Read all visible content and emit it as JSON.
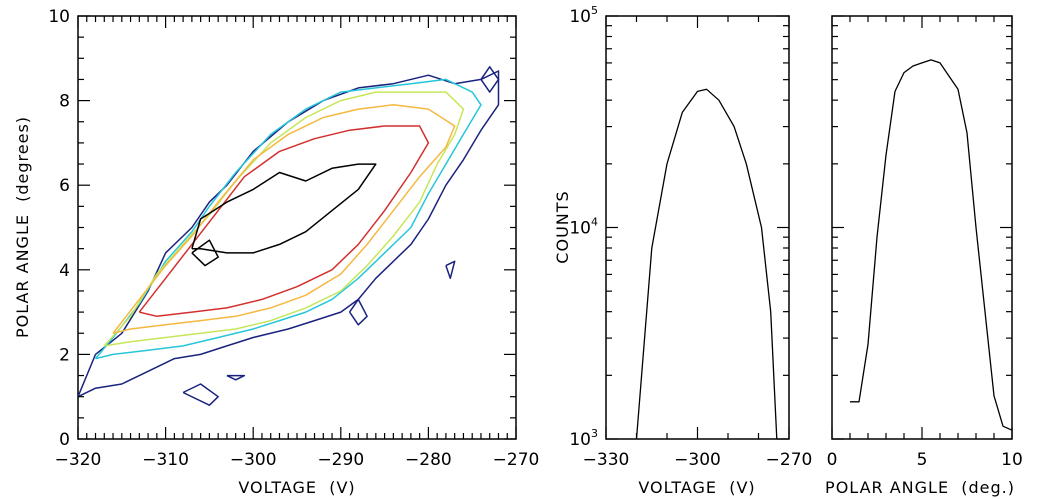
{
  "chart_data": [
    {
      "type": "contour",
      "xlabel": "VOLTAGE  (V)",
      "ylabel": "POLAR ANGLE  (degrees)",
      "xlim": [
        -320,
        -270
      ],
      "ylim": [
        0,
        10
      ],
      "xticks": [
        -320,
        -310,
        -300,
        -290,
        -280,
        -270
      ],
      "yticks": [
        0,
        2,
        4,
        6,
        8,
        10
      ],
      "contours": [
        {
          "color": "#1a237e",
          "x": [
            -320,
            -318,
            -315,
            -312,
            -310,
            -307,
            -305,
            -303,
            -300,
            -296,
            -292,
            -288,
            -284,
            -280,
            -277,
            -274,
            -272,
            -272,
            -274,
            -276,
            -278,
            -280,
            -282,
            -284,
            -286,
            -288,
            -290,
            -293,
            -296,
            -300,
            -303,
            -306,
            -309,
            -312,
            -315,
            -318,
            -320,
            -320
          ],
          "y": [
            1.0,
            2.0,
            2.5,
            3.5,
            4.4,
            5.0,
            5.6,
            6.0,
            6.8,
            7.5,
            8.0,
            8.3,
            8.4,
            8.6,
            8.4,
            8.5,
            8.7,
            7.9,
            7.3,
            6.6,
            6.0,
            5.2,
            4.6,
            4.2,
            3.8,
            3.3,
            3.0,
            2.8,
            2.6,
            2.4,
            2.2,
            2.0,
            1.9,
            1.6,
            1.3,
            1.2,
            1.0,
            1.0
          ]
        },
        {
          "color": "#26c6da",
          "x": [
            -318,
            -316,
            -313,
            -310,
            -307,
            -305,
            -302,
            -298,
            -294,
            -290,
            -286,
            -282,
            -278,
            -275,
            -274,
            -276,
            -278,
            -280,
            -282,
            -285,
            -288,
            -291,
            -294,
            -297,
            -300,
            -304,
            -308,
            -312,
            -316,
            -318
          ],
          "y": [
            1.9,
            2.4,
            3.2,
            4.2,
            4.9,
            5.5,
            6.3,
            7.2,
            7.8,
            8.2,
            8.3,
            8.4,
            8.5,
            8.2,
            7.9,
            7.2,
            6.5,
            5.8,
            5.0,
            4.4,
            3.8,
            3.3,
            3.0,
            2.8,
            2.6,
            2.4,
            2.2,
            2.1,
            2.0,
            1.9
          ]
        },
        {
          "color": "#c6e65a",
          "x": [
            -317,
            -314,
            -311,
            -308,
            -305,
            -302,
            -298,
            -294,
            -290,
            -286,
            -282,
            -278,
            -276,
            -277,
            -279,
            -281,
            -284,
            -287,
            -290,
            -294,
            -298,
            -302,
            -306,
            -310,
            -314,
            -317
          ],
          "y": [
            2.2,
            2.9,
            3.9,
            4.6,
            5.3,
            6.1,
            7.0,
            7.6,
            8.0,
            8.2,
            8.2,
            8.2,
            7.8,
            7.2,
            6.5,
            5.6,
            4.8,
            4.1,
            3.5,
            3.1,
            2.8,
            2.6,
            2.5,
            2.4,
            2.3,
            2.2
          ]
        },
        {
          "color": "#f5b840",
          "x": [
            -316,
            -313,
            -310,
            -307,
            -304,
            -300,
            -296,
            -292,
            -288,
            -284,
            -280,
            -277,
            -278,
            -281,
            -284,
            -287,
            -290,
            -294,
            -298,
            -302,
            -306,
            -310,
            -314,
            -316
          ],
          "y": [
            2.5,
            3.3,
            4.1,
            4.8,
            5.6,
            6.6,
            7.2,
            7.6,
            7.8,
            7.9,
            7.8,
            7.4,
            6.9,
            6.2,
            5.4,
            4.6,
            3.9,
            3.4,
            3.1,
            2.9,
            2.8,
            2.7,
            2.6,
            2.5
          ]
        },
        {
          "color": "#d32f2f",
          "x": [
            -313,
            -310,
            -307,
            -304,
            -301,
            -297,
            -293,
            -289,
            -285,
            -281,
            -280,
            -282,
            -285,
            -288,
            -291,
            -295,
            -299,
            -303,
            -307,
            -311,
            -313
          ],
          "y": [
            3.0,
            3.8,
            4.6,
            5.4,
            6.2,
            6.8,
            7.1,
            7.3,
            7.4,
            7.4,
            7.0,
            6.3,
            5.4,
            4.6,
            4.0,
            3.6,
            3.3,
            3.1,
            3.0,
            2.9,
            3.0
          ]
        },
        {
          "color": "#000000",
          "x": [
            -307,
            -306,
            -303,
            -300,
            -297,
            -294,
            -291,
            -288,
            -286,
            -288,
            -291,
            -294,
            -297,
            -300,
            -303,
            -306,
            -307
          ],
          "y": [
            4.5,
            5.2,
            5.6,
            5.9,
            6.3,
            6.1,
            6.4,
            6.5,
            6.5,
            5.9,
            5.4,
            4.9,
            4.6,
            4.4,
            4.4,
            4.5,
            4.5
          ]
        },
        {
          "color": "#000000",
          "x": [
            -307,
            -305,
            -304,
            -305.5,
            -307
          ],
          "y": [
            4.4,
            4.7,
            4.3,
            4.1,
            4.4
          ]
        },
        {
          "color": "#1a237e",
          "x": [
            -308,
            -306,
            -304,
            -305,
            -308
          ],
          "y": [
            1.1,
            1.3,
            1.0,
            0.8,
            1.1
          ]
        },
        {
          "color": "#1a237e",
          "x": [
            -303,
            -301,
            -302,
            -303
          ],
          "y": [
            1.5,
            1.5,
            1.4,
            1.5
          ]
        },
        {
          "color": "#1a237e",
          "x": [
            -289,
            -288,
            -287,
            -288,
            -289
          ],
          "y": [
            3.0,
            3.3,
            2.9,
            2.7,
            3.0
          ]
        },
        {
          "color": "#1a237e",
          "x": [
            -278,
            -277,
            -277.5,
            -278
          ],
          "y": [
            4.1,
            4.2,
            3.8,
            4.1
          ]
        },
        {
          "color": "#1a237e",
          "x": [
            -274,
            -273,
            -272,
            -273,
            -274
          ],
          "y": [
            8.5,
            8.8,
            8.5,
            8.2,
            8.5
          ]
        }
      ]
    },
    {
      "type": "line",
      "xlabel": "VOLTAGE  (V)",
      "ylabel": "COUNTS",
      "ylog": true,
      "xlim": [
        -330,
        -270
      ],
      "ylim": [
        1000,
        100000
      ],
      "xticks": [
        -330,
        -300,
        -270
      ],
      "yticks": [
        {
          "value": 1000,
          "base": "10",
          "exp": "3"
        },
        {
          "value": 10000,
          "base": "10",
          "exp": "4"
        },
        {
          "value": 100000,
          "base": "10",
          "exp": "5"
        }
      ],
      "x": [
        -320,
        -315,
        -310,
        -305,
        -300,
        -297,
        -293,
        -288,
        -284,
        -279,
        -276,
        -274
      ],
      "y": [
        1000,
        8000,
        20000,
        35000,
        44000,
        45000,
        40000,
        30000,
        20000,
        10000,
        4000,
        1000
      ]
    },
    {
      "type": "line",
      "xlabel": "POLAR ANGLE  (deg.)",
      "xlim": [
        0,
        10
      ],
      "ylog": true,
      "ylim": [
        1000,
        100000
      ],
      "xticks": [
        0,
        5,
        10
      ],
      "x": [
        1.0,
        1.5,
        2.0,
        2.5,
        3.0,
        3.5,
        4.0,
        4.5,
        5.0,
        5.5,
        6.0,
        6.5,
        7.0,
        7.5,
        8.0,
        8.5,
        9.0,
        9.5,
        10.0
      ],
      "y": [
        1500,
        1500,
        2800,
        9000,
        22000,
        44000,
        54000,
        58000,
        60000,
        62000,
        60000,
        52000,
        45000,
        28000,
        10000,
        4000,
        1600,
        1150,
        1100
      ]
    }
  ]
}
